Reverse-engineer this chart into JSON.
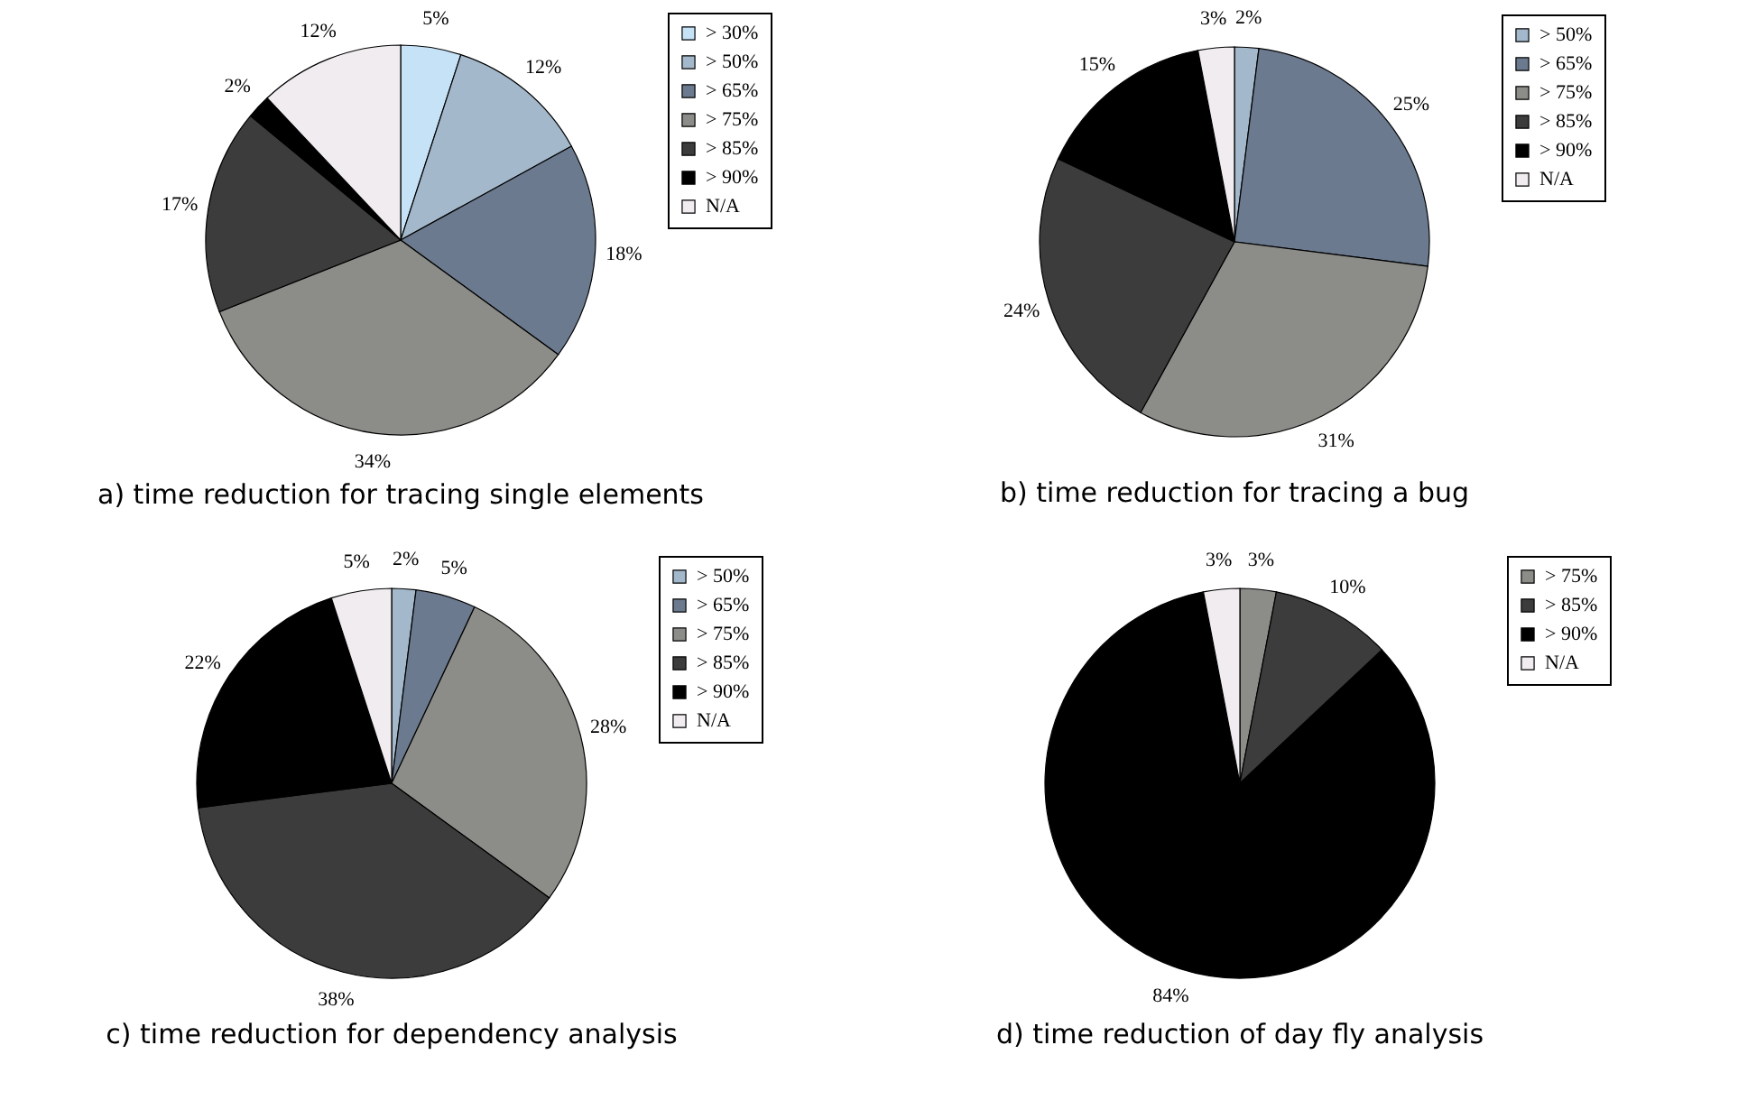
{
  "chart_data": [
    {
      "type": "pie",
      "title": "a) time reduction for tracing single elements",
      "legend": "right",
      "categories": [
        "> 30%",
        "> 50%",
        "> 65%",
        "> 75%",
        "> 85%",
        "> 90%",
        "N/A"
      ],
      "values": [
        5,
        12,
        18,
        34,
        17,
        2,
        12
      ],
      "value_labels": [
        "5%",
        "12%",
        "18%",
        "34%",
        "17%",
        "2%",
        "12%"
      ],
      "colors": [
        "#c6e2f7",
        "#a3b8cb",
        "#6b7a8f",
        "#8c8c88",
        "#3c3c3c",
        "#000000",
        "#f0ecf0"
      ]
    },
    {
      "type": "pie",
      "title": "b) time reduction for tracing a bug",
      "legend": "right",
      "categories": [
        "> 50%",
        "> 65%",
        "> 75%",
        "> 85%",
        "> 90%",
        "N/A"
      ],
      "values": [
        2,
        25,
        31,
        24,
        15,
        3
      ],
      "value_labels": [
        "2%",
        "25%",
        "31%",
        "24%",
        "15%",
        "3%"
      ],
      "colors": [
        "#a3b8cb",
        "#6b7a8f",
        "#8c8c88",
        "#3c3c3c",
        "#000000",
        "#f0ecf0"
      ]
    },
    {
      "type": "pie",
      "title": "c) time reduction for dependency analysis",
      "legend": "right",
      "categories": [
        "> 50%",
        "> 65%",
        "> 75%",
        "> 85%",
        "> 90%",
        "N/A"
      ],
      "values": [
        2,
        5,
        28,
        38,
        22,
        5
      ],
      "value_labels": [
        "2%",
        "5%",
        "28%",
        "38%",
        "22%",
        "5%"
      ],
      "colors": [
        "#a3b8cb",
        "#6b7a8f",
        "#8c8c88",
        "#3c3c3c",
        "#000000",
        "#f0ecf0"
      ]
    },
    {
      "type": "pie",
      "title": "d) time reduction of day fly analysis",
      "legend": "right",
      "categories": [
        "> 75%",
        "> 85%",
        "> 90%",
        "N/A"
      ],
      "values": [
        3,
        10,
        84,
        3
      ],
      "value_labels": [
        "3%",
        "10%",
        "84%",
        "3%"
      ],
      "colors": [
        "#8c8c88",
        "#3c3c3c",
        "#000000",
        "#f0ecf0"
      ]
    }
  ]
}
